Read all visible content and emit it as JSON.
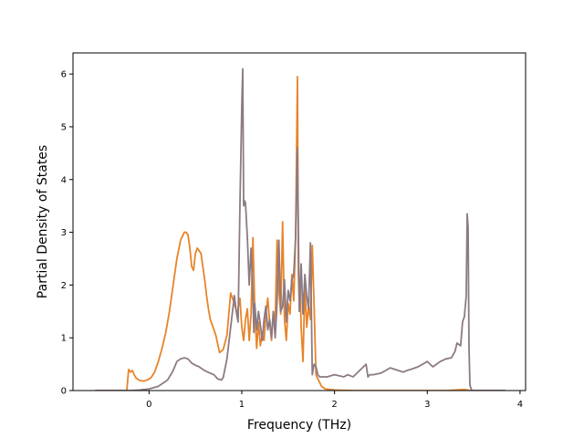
{
  "chart_data": {
    "type": "line",
    "title": "",
    "xlabel": "Frequency (THz)",
    "ylabel": "Partial Density of States",
    "xlim": [
      -0.82,
      4.06
    ],
    "ylim": [
      0,
      6.4
    ],
    "xticks": [
      0,
      1,
      2,
      3,
      4
    ],
    "xtick_labels": [
      "0",
      "1",
      "2",
      "3",
      "4"
    ],
    "yticks": [
      0,
      1,
      2,
      3,
      4,
      5,
      6
    ],
    "ytick_labels": [
      "0",
      "1",
      "2",
      "3",
      "4",
      "5",
      "6"
    ],
    "grid": false,
    "legend": "none",
    "series": [
      {
        "color": "#e8842a",
        "x": [
          -0.58,
          -0.24,
          -0.22,
          -0.2,
          -0.18,
          -0.16,
          -0.14,
          -0.12,
          -0.1,
          -0.06,
          -0.02,
          0.02,
          0.06,
          0.1,
          0.14,
          0.18,
          0.22,
          0.26,
          0.3,
          0.34,
          0.38,
          0.4,
          0.42,
          0.44,
          0.46,
          0.48,
          0.5,
          0.52,
          0.54,
          0.56,
          0.58,
          0.6,
          0.62,
          0.64,
          0.66,
          0.68,
          0.72,
          0.76,
          0.8,
          0.84,
          0.88,
          0.92,
          0.95,
          0.98,
          1.0,
          1.02,
          1.04,
          1.06,
          1.08,
          1.1,
          1.12,
          1.14,
          1.16,
          1.18,
          1.2,
          1.22,
          1.24,
          1.26,
          1.28,
          1.3,
          1.32,
          1.34,
          1.36,
          1.38,
          1.4,
          1.42,
          1.44,
          1.46,
          1.48,
          1.5,
          1.52,
          1.54,
          1.56,
          1.58,
          1.6,
          1.61,
          1.62,
          1.63,
          1.64,
          1.66,
          1.68,
          1.7,
          1.72,
          1.74,
          1.76,
          1.78,
          1.8,
          1.82,
          1.84,
          1.86,
          1.9,
          2.0,
          2.2,
          2.5,
          2.8,
          3.0,
          3.2,
          3.4,
          3.46,
          3.5,
          3.84
        ],
        "y": [
          0,
          0,
          0.4,
          0.35,
          0.38,
          0.3,
          0.24,
          0.21,
          0.19,
          0.18,
          0.2,
          0.24,
          0.35,
          0.55,
          0.8,
          1.1,
          1.5,
          2.0,
          2.5,
          2.85,
          3.0,
          3.0,
          2.95,
          2.7,
          2.35,
          2.28,
          2.6,
          2.7,
          2.65,
          2.6,
          2.35,
          2.1,
          1.8,
          1.55,
          1.35,
          1.25,
          1.05,
          0.72,
          0.78,
          1.05,
          1.85,
          1.65,
          1.45,
          1.75,
          1.2,
          0.95,
          1.35,
          1.55,
          0.95,
          1.45,
          2.9,
          1.55,
          0.8,
          1.3,
          0.85,
          1.05,
          0.95,
          1.45,
          1.75,
          1.3,
          0.95,
          1.5,
          1.3,
          2.85,
          1.9,
          1.45,
          3.2,
          1.35,
          0.95,
          1.65,
          1.45,
          2.2,
          1.7,
          2.9,
          5.95,
          2.2,
          1.7,
          1.9,
          1.2,
          0.55,
          2.0,
          1.2,
          1.6,
          1.35,
          2.75,
          1.6,
          0.3,
          0.22,
          0.15,
          0.08,
          0.03,
          0.01,
          0,
          0,
          0,
          0,
          0,
          0.02,
          0.0,
          0,
          0
        ]
      },
      {
        "color": "#8c7b84",
        "x": [
          -0.58,
          -0.2,
          -0.1,
          0.0,
          0.1,
          0.2,
          0.26,
          0.3,
          0.34,
          0.38,
          0.42,
          0.46,
          0.5,
          0.54,
          0.58,
          0.62,
          0.66,
          0.7,
          0.74,
          0.78,
          0.8,
          0.84,
          0.88,
          0.92,
          0.94,
          0.96,
          0.98,
          1.0,
          1.01,
          1.02,
          1.03,
          1.04,
          1.06,
          1.08,
          1.1,
          1.12,
          1.13,
          1.14,
          1.16,
          1.18,
          1.2,
          1.22,
          1.24,
          1.26,
          1.28,
          1.3,
          1.32,
          1.34,
          1.36,
          1.38,
          1.4,
          1.42,
          1.44,
          1.46,
          1.48,
          1.5,
          1.52,
          1.54,
          1.56,
          1.58,
          1.6,
          1.62,
          1.63,
          1.64,
          1.66,
          1.68,
          1.7,
          1.72,
          1.74,
          1.76,
          1.78,
          1.8,
          1.82,
          1.84,
          1.88,
          1.92,
          2.0,
          2.1,
          2.14,
          2.2,
          2.34,
          2.36,
          2.38,
          2.42,
          2.5,
          2.6,
          2.74,
          2.78,
          2.82,
          2.9,
          3.0,
          3.06,
          3.1,
          3.14,
          3.2,
          3.26,
          3.3,
          3.32,
          3.36,
          3.38,
          3.4,
          3.42,
          3.43,
          3.44,
          3.45,
          3.46,
          3.48,
          3.84
        ],
        "y": [
          0,
          0,
          0.01,
          0.03,
          0.08,
          0.2,
          0.38,
          0.55,
          0.6,
          0.62,
          0.6,
          0.52,
          0.48,
          0.45,
          0.4,
          0.36,
          0.33,
          0.3,
          0.22,
          0.2,
          0.25,
          0.6,
          1.2,
          1.8,
          1.5,
          1.3,
          3.5,
          5.4,
          6.1,
          3.5,
          3.6,
          3.55,
          2.9,
          2.0,
          2.7,
          1.8,
          1.1,
          1.65,
          1.15,
          1.5,
          1.25,
          0.95,
          1.35,
          1.6,
          1.15,
          1.35,
          1.0,
          1.5,
          1.0,
          1.65,
          2.85,
          1.5,
          1.6,
          2.1,
          1.3,
          1.9,
          1.7,
          2.1,
          2.2,
          2.9,
          4.6,
          1.5,
          1.9,
          2.4,
          1.45,
          2.2,
          1.8,
          1.55,
          2.8,
          0.3,
          0.5,
          0.45,
          0.3,
          0.26,
          0.26,
          0.26,
          0.3,
          0.26,
          0.3,
          0.26,
          0.5,
          0.26,
          0.3,
          0.3,
          0.33,
          0.43,
          0.35,
          0.38,
          0.4,
          0.45,
          0.55,
          0.45,
          0.5,
          0.55,
          0.6,
          0.62,
          0.75,
          0.9,
          0.85,
          1.3,
          1.4,
          1.8,
          3.35,
          3.1,
          0.8,
          0.1,
          0,
          0
        ]
      }
    ]
  }
}
